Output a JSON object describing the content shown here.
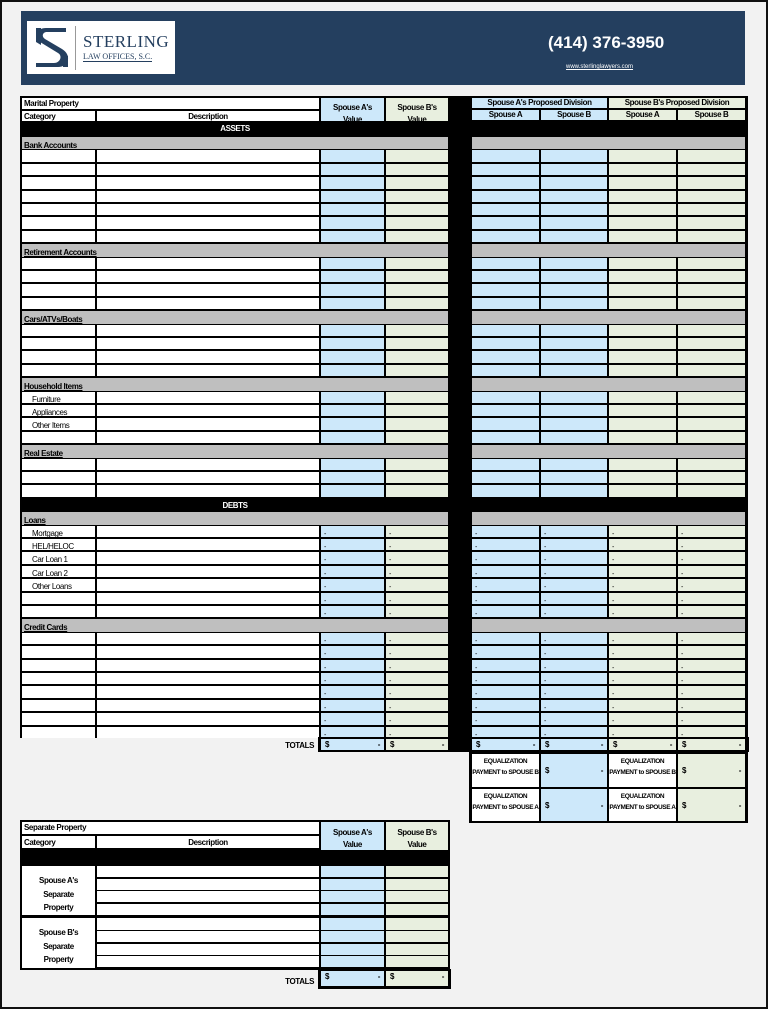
{
  "header": {
    "firm_name": "STERLING",
    "firm_subtitle": "LAW OFFICES, S.C.",
    "phone": "(414) 376-3950",
    "website": "www.sterlinglawyers.com",
    "banner_color": "#243f5f"
  },
  "colors": {
    "spouse_a": "#cde8fa",
    "spouse_b": "#e8efdf",
    "section": "#bfbfbf"
  },
  "marital": {
    "title": "Marital Property",
    "category_label": "Category",
    "description_label": "Description",
    "spouse_a_value": "Spouse A's Value",
    "spouse_b_value": "Spouse B's Value",
    "a_division": "Spouse A's Proposed Division",
    "b_division": "Spouse B's Proposed Division",
    "spouse_a": "Spouse A",
    "spouse_b": "Spouse B",
    "assets_label": "ASSETS",
    "debts_label": "DEBTS",
    "dash": "-",
    "sections": [
      {
        "name": "Bank Accounts",
        "kind": "asset",
        "rows": [
          "",
          "",
          "",
          "",
          "",
          "",
          ""
        ]
      },
      {
        "name": "Retirement Accounts",
        "kind": "asset",
        "rows": [
          "",
          "",
          "",
          ""
        ]
      },
      {
        "name": "Cars/ATVs/Boats",
        "kind": "asset",
        "rows": [
          "",
          "",
          "",
          ""
        ]
      },
      {
        "name": "Household Items",
        "kind": "asset",
        "rows": [
          "Furniture",
          "Appliances",
          "Other Items",
          ""
        ]
      },
      {
        "name": "Real Estate",
        "kind": "asset",
        "rows": [
          "",
          "",
          ""
        ]
      },
      {
        "name": "Loans",
        "kind": "debt",
        "rows": [
          "Mortgage",
          "HEL/HELOC",
          "Car Loan 1",
          "Car Loan 2",
          "Other Loans",
          "",
          ""
        ]
      },
      {
        "name": "Credit Cards",
        "kind": "debt",
        "rows": [
          "",
          "",
          "",
          "",
          "",
          "",
          "",
          ""
        ]
      }
    ],
    "totals": {
      "label": "TOTALS",
      "currency": "$",
      "values": [
        "-",
        "-",
        "-",
        "-",
        "-",
        "-"
      ]
    },
    "equalization": [
      {
        "label": "EQUALIZATION PAYMENT to SPOUSE B",
        "currency": "$",
        "value": "-"
      },
      {
        "label": "EQUALIZATION PAYMENT to SPOUSE B",
        "currency": "$",
        "value": "-"
      },
      {
        "label": "EQUALIZATION PAYMENT to SPOUSE A",
        "currency": "$",
        "value": "-"
      },
      {
        "label": "EQUALIZATION PAYMENT to SPOUSE A",
        "currency": "$",
        "value": "-"
      }
    ]
  },
  "separate": {
    "title": "Separate Property",
    "category_label": "Category",
    "description_label": "Description",
    "spouse_a_value": "Spouse A's Value",
    "spouse_b_value": "Spouse B's Value",
    "groups": [
      {
        "label": "Spouse A's Separate Property",
        "rows": 4
      },
      {
        "label": "Spouse B's Separate Property",
        "rows": 4
      }
    ],
    "totals": {
      "label": "TOTALS",
      "currency": "$",
      "values": [
        "-",
        "-"
      ]
    }
  }
}
